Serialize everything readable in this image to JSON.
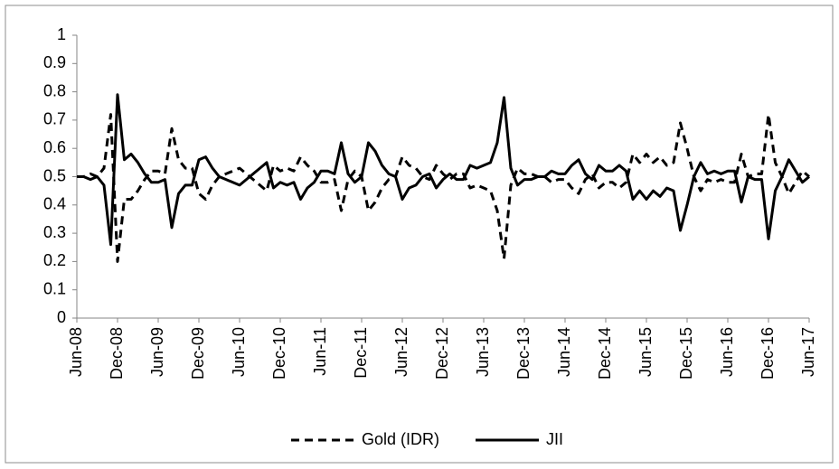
{
  "chart_data": {
    "type": "line",
    "categories": [
      "Jun-08",
      null,
      null,
      null,
      null,
      null,
      "Dec-08",
      null,
      null,
      null,
      null,
      null,
      "Jun-09",
      null,
      null,
      null,
      null,
      null,
      "Dec-09",
      null,
      null,
      null,
      null,
      null,
      "Jun-10",
      null,
      null,
      null,
      null,
      null,
      "Dec-10",
      null,
      null,
      null,
      null,
      null,
      "Jun-11",
      null,
      null,
      null,
      null,
      null,
      "Dec-11",
      null,
      null,
      null,
      null,
      null,
      "Jun-12",
      null,
      null,
      null,
      null,
      null,
      "Dec-12",
      null,
      null,
      null,
      null,
      null,
      "Jun-13",
      null,
      null,
      null,
      null,
      null,
      "Dec-13",
      null,
      null,
      null,
      null,
      null,
      "Jun-14",
      null,
      null,
      null,
      null,
      null,
      "Dec-14",
      null,
      null,
      null,
      null,
      null,
      "Jun-15",
      null,
      null,
      null,
      null,
      null,
      "Dec-15",
      null,
      null,
      null,
      null,
      null,
      "Jun-16",
      null,
      null,
      null,
      null,
      null,
      "Dec-16",
      null,
      null,
      null,
      null,
      null,
      "Jun-17"
    ],
    "series": [
      {
        "name": "Gold (IDR)",
        "color": "#000000",
        "style": "dashed",
        "values": [
          0.5,
          0.5,
          0.51,
          0.5,
          0.53,
          0.72,
          0.2,
          0.42,
          0.42,
          0.45,
          0.49,
          0.52,
          0.52,
          0.51,
          0.67,
          0.56,
          0.53,
          0.53,
          0.44,
          0.42,
          0.47,
          0.5,
          0.51,
          0.52,
          0.53,
          0.51,
          0.49,
          0.47,
          0.45,
          0.54,
          0.52,
          0.53,
          0.52,
          0.57,
          0.54,
          0.52,
          0.48,
          0.48,
          0.49,
          0.38,
          0.49,
          0.52,
          0.5,
          0.38,
          0.41,
          0.46,
          0.49,
          0.5,
          0.57,
          0.54,
          0.53,
          0.5,
          0.49,
          0.54,
          0.51,
          0.49,
          0.51,
          0.51,
          0.46,
          0.47,
          0.46,
          0.45,
          0.38,
          0.21,
          0.47,
          0.53,
          0.51,
          0.51,
          0.5,
          0.5,
          0.48,
          0.49,
          0.49,
          0.46,
          0.44,
          0.49,
          0.51,
          0.46,
          0.48,
          0.48,
          0.46,
          0.48,
          0.58,
          0.55,
          0.58,
          0.55,
          0.57,
          0.54,
          0.55,
          0.69,
          0.6,
          0.5,
          0.45,
          0.49,
          0.48,
          0.49,
          0.48,
          0.48,
          0.58,
          0.5,
          0.51,
          0.51,
          0.72,
          0.55,
          0.5,
          0.44,
          0.48,
          0.52,
          0.5
        ]
      },
      {
        "name": "JII",
        "color": "#000000",
        "style": "solid",
        "values": [
          0.5,
          0.5,
          0.49,
          0.5,
          0.47,
          0.26,
          0.79,
          0.56,
          0.58,
          0.55,
          0.51,
          0.48,
          0.48,
          0.49,
          0.32,
          0.44,
          0.47,
          0.47,
          0.56,
          0.57,
          0.53,
          0.5,
          0.49,
          0.48,
          0.47,
          0.49,
          0.51,
          0.53,
          0.55,
          0.46,
          0.48,
          0.47,
          0.48,
          0.42,
          0.46,
          0.48,
          0.52,
          0.52,
          0.51,
          0.62,
          0.51,
          0.48,
          0.5,
          0.62,
          0.59,
          0.54,
          0.51,
          0.5,
          0.42,
          0.46,
          0.47,
          0.5,
          0.51,
          0.46,
          0.49,
          0.51,
          0.49,
          0.49,
          0.54,
          0.53,
          0.54,
          0.55,
          0.62,
          0.78,
          0.53,
          0.47,
          0.49,
          0.49,
          0.5,
          0.5,
          0.52,
          0.51,
          0.51,
          0.54,
          0.56,
          0.51,
          0.49,
          0.54,
          0.52,
          0.52,
          0.54,
          0.52,
          0.42,
          0.45,
          0.42,
          0.45,
          0.43,
          0.46,
          0.45,
          0.31,
          0.4,
          0.5,
          0.55,
          0.51,
          0.52,
          0.51,
          0.52,
          0.52,
          0.41,
          0.5,
          0.49,
          0.49,
          0.28,
          0.45,
          0.5,
          0.56,
          0.52,
          0.48,
          0.5
        ]
      }
    ],
    "ylim": [
      0,
      1
    ],
    "yticks": [
      0,
      0.1,
      0.2,
      0.3,
      0.4,
      0.5,
      0.6,
      0.7,
      0.8,
      0.9,
      1
    ],
    "grid": false,
    "legend": "bottom"
  }
}
